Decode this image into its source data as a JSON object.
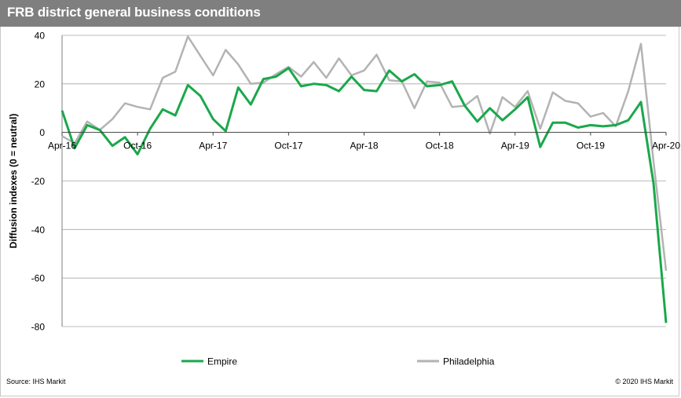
{
  "header": {
    "title": "FRB district general business conditions"
  },
  "footer": {
    "source": "Source:  IHS Markit",
    "copyright": "© 2020  IHS Markit"
  },
  "colors": {
    "header_bg": "#7f7f7f",
    "empire": "#1aa84b",
    "philadelphia": "#b3b3b3",
    "grid": "#a6a6a6"
  },
  "chart_data": {
    "type": "line",
    "title": "FRB district general business conditions",
    "ylabel": "Diffusion indexes (0 = neutral)",
    "xlabel": "",
    "ylim": [
      -80,
      40
    ],
    "yticks": [
      40,
      20,
      0,
      -20,
      -40,
      -60,
      -80
    ],
    "grid": true,
    "legend_position": "bottom",
    "x": [
      "2016-04",
      "2016-05",
      "2016-06",
      "2016-07",
      "2016-08",
      "2016-09",
      "2016-10",
      "2016-11",
      "2016-12",
      "2017-01",
      "2017-02",
      "2017-03",
      "2017-04",
      "2017-05",
      "2017-06",
      "2017-07",
      "2017-08",
      "2017-09",
      "2017-10",
      "2017-11",
      "2017-12",
      "2018-01",
      "2018-02",
      "2018-03",
      "2018-04",
      "2018-05",
      "2018-06",
      "2018-07",
      "2018-08",
      "2018-09",
      "2018-10",
      "2018-11",
      "2018-12",
      "2019-01",
      "2019-02",
      "2019-03",
      "2019-04",
      "2019-05",
      "2019-06",
      "2019-07",
      "2019-08",
      "2019-09",
      "2019-10",
      "2019-11",
      "2019-12",
      "2020-01",
      "2020-02",
      "2020-03",
      "2020-04"
    ],
    "x_tick_labels": [
      {
        "x": "2016-04",
        "label": "Apr-16"
      },
      {
        "x": "2016-10",
        "label": "Oct-16"
      },
      {
        "x": "2017-04",
        "label": "Apr-17"
      },
      {
        "x": "2017-10",
        "label": "Oct-17"
      },
      {
        "x": "2018-04",
        "label": "Apr-18"
      },
      {
        "x": "2018-10",
        "label": "Oct-18"
      },
      {
        "x": "2019-04",
        "label": "Apr-19"
      },
      {
        "x": "2019-10",
        "label": "Oct-19"
      },
      {
        "x": "2020-04",
        "label": "Apr-20"
      }
    ],
    "series": [
      {
        "name": "Empire",
        "color": "#1aa84b",
        "values": [
          9.0,
          -6.5,
          3.0,
          1.0,
          -5.5,
          -2.0,
          -9.0,
          1.5,
          9.5,
          7.0,
          19.5,
          15.0,
          5.5,
          0.5,
          18.5,
          11.5,
          22.0,
          23.0,
          26.5,
          19.0,
          20.0,
          19.5,
          17.0,
          23.0,
          17.5,
          17.0,
          25.5,
          21.0,
          24.0,
          19.0,
          19.5,
          21.0,
          11.0,
          4.5,
          10.0,
          5.0,
          9.5,
          14.5,
          -6.0,
          4.0,
          4.0,
          2.0,
          3.0,
          2.5,
          3.0,
          5.0,
          12.5,
          -21.0,
          -78.5
        ]
      },
      {
        "name": "Philadelphia",
        "color": "#b3b3b3",
        "values": [
          -1.5,
          -4.5,
          4.5,
          1.0,
          5.5,
          12.0,
          10.5,
          9.5,
          22.5,
          25.0,
          39.5,
          31.5,
          23.5,
          34.0,
          28.0,
          20.0,
          20.5,
          24.0,
          27.0,
          23.0,
          29.0,
          22.5,
          30.5,
          23.5,
          25.5,
          32.0,
          21.5,
          21.0,
          10.0,
          21.0,
          20.5,
          10.5,
          11.0,
          15.0,
          -0.5,
          14.5,
          10.5,
          17.0,
          1.5,
          16.5,
          13.0,
          12.0,
          6.5,
          8.0,
          2.5,
          17.0,
          36.5,
          -12.0,
          -57.0
        ]
      }
    ]
  }
}
